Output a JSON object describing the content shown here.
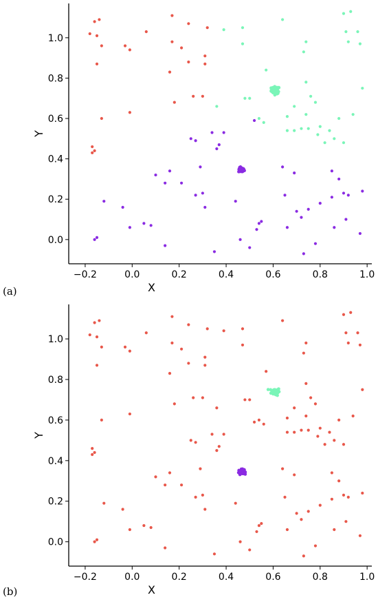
{
  "colors": {
    "red": "#e8574a",
    "teal": "#7af5b8",
    "purple": "#8a2be2"
  },
  "chart_data": [
    {
      "type": "scatter",
      "panel_label": "(a)",
      "xlabel": "X",
      "ylabel": "Y",
      "xlim": [
        -0.27,
        1.02
      ],
      "ylim": [
        -0.12,
        1.17
      ],
      "xticks": [
        "−0.2",
        "0.0",
        "0.2",
        "0.4",
        "0.6",
        "0.8",
        "1.0"
      ],
      "xtick_values": [
        -0.2,
        0.0,
        0.2,
        0.4,
        0.6,
        0.8,
        1.0
      ],
      "yticks": [
        "0.0",
        "0.2",
        "0.4",
        "0.6",
        "0.8",
        "1.0"
      ],
      "ytick_values": [
        0.0,
        0.2,
        0.4,
        0.6,
        0.8,
        1.0
      ],
      "grid": false,
      "series": [
        {
          "color": "red",
          "points": [
            [
              -0.18,
              1.02
            ],
            [
              -0.16,
              1.08
            ],
            [
              -0.14,
              1.09
            ],
            [
              -0.15,
              1.01
            ],
            [
              -0.13,
              0.96
            ],
            [
              -0.15,
              0.87
            ],
            [
              -0.13,
              0.6
            ],
            [
              -0.17,
              0.46
            ],
            [
              -0.17,
              0.43
            ],
            [
              -0.16,
              0.44
            ],
            [
              -0.03,
              0.96
            ],
            [
              -0.01,
              0.94
            ],
            [
              -0.01,
              0.63
            ],
            [
              0.06,
              1.03
            ],
            [
              0.17,
              1.11
            ],
            [
              0.17,
              0.98
            ],
            [
              0.16,
              0.83
            ],
            [
              0.18,
              0.68
            ],
            [
              0.21,
              0.95
            ],
            [
              0.24,
              1.07
            ],
            [
              0.24,
              0.88
            ],
            [
              0.26,
              0.71
            ],
            [
              0.3,
              0.71
            ],
            [
              0.32,
              1.05
            ],
            [
              0.31,
              0.91
            ],
            [
              0.31,
              0.87
            ]
          ]
        },
        {
          "color": "teal",
          "points": [
            [
              0.39,
              1.04
            ],
            [
              0.47,
              1.05
            ],
            [
              0.47,
              0.97
            ],
            [
              0.48,
              0.7
            ],
            [
              0.5,
              0.7
            ],
            [
              0.36,
              0.66
            ],
            [
              0.54,
              0.6
            ],
            [
              0.56,
              0.58
            ],
            [
              0.57,
              0.84
            ],
            [
              0.64,
              1.09
            ],
            [
              0.66,
              0.61
            ],
            [
              0.66,
              0.54
            ],
            [
              0.69,
              0.54
            ],
            [
              0.72,
              0.55
            ],
            [
              0.73,
              0.93
            ],
            [
              0.74,
              0.98
            ],
            [
              0.74,
              0.78
            ],
            [
              0.74,
              0.62
            ],
            [
              0.75,
              0.55
            ],
            [
              0.76,
              0.71
            ],
            [
              0.78,
              0.68
            ],
            [
              0.79,
              0.52
            ],
            [
              0.8,
              0.56
            ],
            [
              0.82,
              0.48
            ],
            [
              0.84,
              0.54
            ],
            [
              0.86,
              0.5
            ],
            [
              0.88,
              0.6
            ],
            [
              0.9,
              1.12
            ],
            [
              0.91,
              1.03
            ],
            [
              0.9,
              0.48
            ],
            [
              0.92,
              0.98
            ],
            [
              0.93,
              1.13
            ],
            [
              0.94,
              0.62
            ],
            [
              0.96,
              1.03
            ],
            [
              0.97,
              0.97
            ],
            [
              0.98,
              0.75
            ],
            [
              0.69,
              0.66
            ]
          ],
          "clusters": [
            {
              "center": [
                0.61,
                0.74
              ],
              "spread": [
                0.018,
                0.018
              ],
              "n": 60
            }
          ]
        },
        {
          "color": "purple",
          "points": [
            [
              -0.16,
              0.0
            ],
            [
              -0.15,
              0.01
            ],
            [
              -0.12,
              0.19
            ],
            [
              -0.04,
              0.16
            ],
            [
              -0.01,
              0.06
            ],
            [
              0.05,
              0.08
            ],
            [
              0.08,
              0.07
            ],
            [
              0.1,
              0.32
            ],
            [
              0.14,
              0.28
            ],
            [
              0.14,
              -0.03
            ],
            [
              0.16,
              0.34
            ],
            [
              0.21,
              0.28
            ],
            [
              0.25,
              0.5
            ],
            [
              0.27,
              0.49
            ],
            [
              0.27,
              0.22
            ],
            [
              0.29,
              0.36
            ],
            [
              0.3,
              0.23
            ],
            [
              0.31,
              0.16
            ],
            [
              0.34,
              0.53
            ],
            [
              0.36,
              0.45
            ],
            [
              0.37,
              0.47
            ],
            [
              0.39,
              0.53
            ],
            [
              0.35,
              -0.06
            ],
            [
              0.44,
              0.19
            ],
            [
              0.46,
              0.0
            ],
            [
              0.5,
              -0.04
            ],
            [
              0.52,
              0.59
            ],
            [
              0.53,
              0.05
            ],
            [
              0.54,
              0.08
            ],
            [
              0.55,
              0.09
            ],
            [
              0.64,
              0.36
            ],
            [
              0.65,
              0.22
            ],
            [
              0.66,
              0.06
            ],
            [
              0.69,
              0.33
            ],
            [
              0.7,
              0.14
            ],
            [
              0.72,
              0.11
            ],
            [
              0.73,
              -0.07
            ],
            [
              0.75,
              0.15
            ],
            [
              0.78,
              -0.02
            ],
            [
              0.8,
              0.18
            ],
            [
              0.85,
              0.34
            ],
            [
              0.85,
              0.21
            ],
            [
              0.86,
              0.06
            ],
            [
              0.88,
              0.3
            ],
            [
              0.9,
              0.23
            ],
            [
              0.91,
              0.1
            ],
            [
              0.92,
              0.22
            ],
            [
              0.97,
              0.03
            ],
            [
              0.98,
              0.24
            ]
          ],
          "clusters": [
            {
              "center": [
                0.465,
                0.345
              ],
              "spread": [
                0.012,
                0.012
              ],
              "n": 60
            }
          ]
        }
      ]
    },
    {
      "type": "scatter",
      "panel_label": "(b)",
      "xlabel": "X",
      "ylabel": "Y",
      "xlim": [
        -0.27,
        1.02
      ],
      "ylim": [
        -0.12,
        1.17
      ],
      "xticks": [
        "−0.2",
        "0.0",
        "0.2",
        "0.4",
        "0.6",
        "0.8",
        "1.0"
      ],
      "xtick_values": [
        -0.2,
        0.0,
        0.2,
        0.4,
        0.6,
        0.8,
        1.0
      ],
      "yticks": [
        "0.0",
        "0.2",
        "0.4",
        "0.6",
        "0.8",
        "1.0"
      ],
      "ytick_values": [
        0.0,
        0.2,
        0.4,
        0.6,
        0.8,
        1.0
      ],
      "grid": false,
      "series": [
        {
          "color": "red",
          "points": [
            [
              -0.18,
              1.02
            ],
            [
              -0.16,
              1.08
            ],
            [
              -0.14,
              1.09
            ],
            [
              -0.15,
              1.01
            ],
            [
              -0.13,
              0.96
            ],
            [
              -0.15,
              0.87
            ],
            [
              -0.13,
              0.6
            ],
            [
              -0.17,
              0.46
            ],
            [
              -0.17,
              0.43
            ],
            [
              -0.16,
              0.44
            ],
            [
              -0.03,
              0.96
            ],
            [
              -0.01,
              0.94
            ],
            [
              -0.01,
              0.63
            ],
            [
              0.06,
              1.03
            ],
            [
              0.17,
              1.11
            ],
            [
              0.17,
              0.98
            ],
            [
              0.16,
              0.83
            ],
            [
              0.18,
              0.68
            ],
            [
              0.21,
              0.95
            ],
            [
              0.24,
              1.07
            ],
            [
              0.24,
              0.88
            ],
            [
              0.26,
              0.71
            ],
            [
              0.3,
              0.71
            ],
            [
              0.32,
              1.05
            ],
            [
              0.31,
              0.91
            ],
            [
              0.31,
              0.87
            ],
            [
              0.39,
              1.04
            ],
            [
              0.47,
              1.05
            ],
            [
              0.47,
              0.97
            ],
            [
              0.48,
              0.7
            ],
            [
              0.5,
              0.7
            ],
            [
              0.36,
              0.66
            ],
            [
              0.54,
              0.6
            ],
            [
              0.56,
              0.58
            ],
            [
              0.57,
              0.84
            ],
            [
              0.64,
              1.09
            ],
            [
              0.66,
              0.61
            ],
            [
              0.66,
              0.54
            ],
            [
              0.69,
              0.54
            ],
            [
              0.72,
              0.55
            ],
            [
              0.73,
              0.93
            ],
            [
              0.74,
              0.98
            ],
            [
              0.74,
              0.78
            ],
            [
              0.74,
              0.62
            ],
            [
              0.75,
              0.55
            ],
            [
              0.76,
              0.71
            ],
            [
              0.78,
              0.68
            ],
            [
              0.79,
              0.52
            ],
            [
              0.8,
              0.56
            ],
            [
              0.82,
              0.48
            ],
            [
              0.84,
              0.54
            ],
            [
              0.86,
              0.5
            ],
            [
              0.88,
              0.6
            ],
            [
              0.9,
              1.12
            ],
            [
              0.91,
              1.03
            ],
            [
              0.9,
              0.48
            ],
            [
              0.92,
              0.98
            ],
            [
              0.93,
              1.13
            ],
            [
              0.94,
              0.62
            ],
            [
              0.96,
              1.03
            ],
            [
              0.97,
              0.97
            ],
            [
              0.98,
              0.75
            ],
            [
              0.69,
              0.66
            ],
            [
              -0.16,
              0.0
            ],
            [
              -0.15,
              0.01
            ],
            [
              -0.12,
              0.19
            ],
            [
              -0.04,
              0.16
            ],
            [
              -0.01,
              0.06
            ],
            [
              0.05,
              0.08
            ],
            [
              0.08,
              0.07
            ],
            [
              0.1,
              0.32
            ],
            [
              0.14,
              0.28
            ],
            [
              0.14,
              -0.03
            ],
            [
              0.16,
              0.34
            ],
            [
              0.21,
              0.28
            ],
            [
              0.25,
              0.5
            ],
            [
              0.27,
              0.49
            ],
            [
              0.27,
              0.22
            ],
            [
              0.29,
              0.36
            ],
            [
              0.3,
              0.23
            ],
            [
              0.31,
              0.16
            ],
            [
              0.34,
              0.53
            ],
            [
              0.36,
              0.45
            ],
            [
              0.37,
              0.47
            ],
            [
              0.39,
              0.53
            ],
            [
              0.35,
              -0.06
            ],
            [
              0.44,
              0.19
            ],
            [
              0.46,
              0.0
            ],
            [
              0.5,
              -0.04
            ],
            [
              0.52,
              0.59
            ],
            [
              0.53,
              0.05
            ],
            [
              0.54,
              0.08
            ],
            [
              0.55,
              0.09
            ],
            [
              0.64,
              0.36
            ],
            [
              0.65,
              0.22
            ],
            [
              0.66,
              0.06
            ],
            [
              0.69,
              0.33
            ],
            [
              0.7,
              0.14
            ],
            [
              0.72,
              0.11
            ],
            [
              0.73,
              -0.07
            ],
            [
              0.75,
              0.15
            ],
            [
              0.78,
              -0.02
            ],
            [
              0.8,
              0.18
            ],
            [
              0.85,
              0.34
            ],
            [
              0.85,
              0.21
            ],
            [
              0.86,
              0.06
            ],
            [
              0.88,
              0.3
            ],
            [
              0.9,
              0.23
            ],
            [
              0.91,
              0.1
            ],
            [
              0.92,
              0.22
            ],
            [
              0.97,
              0.03
            ],
            [
              0.98,
              0.24
            ]
          ]
        },
        {
          "color": "teal",
          "points": [],
          "clusters": [
            {
              "center": [
                0.61,
                0.74
              ],
              "spread": [
                0.018,
                0.018
              ],
              "n": 60
            }
          ]
        },
        {
          "color": "purple",
          "points": [],
          "clusters": [
            {
              "center": [
                0.465,
                0.345
              ],
              "spread": [
                0.012,
                0.012
              ],
              "n": 60
            }
          ]
        }
      ]
    }
  ]
}
